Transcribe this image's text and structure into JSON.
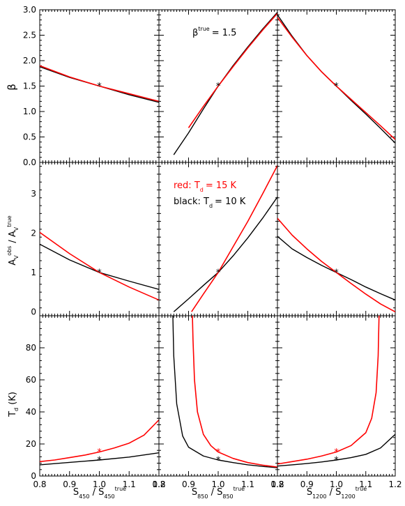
{
  "annotations": {
    "beta_true": {
      "symbol": "β",
      "sup": "true",
      "value": "= 1.5"
    },
    "legend_red": {
      "prefix": "red: T",
      "sub": "d",
      "value": "= 15 K",
      "color": "#ff0000"
    },
    "legend_black": {
      "prefix": "black: T",
      "sub": "d",
      "value": "= 10 K",
      "color": "#000000"
    }
  },
  "colors": {
    "red": "#ff0000",
    "black": "#000000"
  },
  "chart_data": {
    "type": "line",
    "layout": "3x3 grid of panels sharing x-axes by column and y-axes by row",
    "row_labels": [
      {
        "main": "β"
      },
      {
        "main": "A",
        "sub": "V",
        "sup": "obs",
        "denom_main": "A",
        "denom_sub": "V",
        "denom_sup": "true"
      },
      {
        "main": "T",
        "sub": "d",
        "tail": " (K)"
      }
    ],
    "col_labels": [
      {
        "main": "S",
        "sub": "450",
        "denom_main": "S",
        "denom_sub": "450",
        "denom_sup": "true"
      },
      {
        "main": "S",
        "sub": "850",
        "denom_main": "S",
        "denom_sub": "850",
        "denom_sup": "true"
      },
      {
        "main": "S",
        "sub": "1200",
        "denom_main": "S",
        "denom_sub": "1200",
        "denom_sup": "true"
      }
    ],
    "xlim": [
      0.8,
      1.2
    ],
    "x_ticks": [
      "0.8",
      "0.9",
      "1.0",
      "1.1",
      "1.2"
    ],
    "x_tick_values": [
      0.8,
      0.9,
      1.0,
      1.1,
      1.2
    ],
    "rows": [
      {
        "ylim": [
          0,
          3.0
        ],
        "y_ticks": [
          "0.0",
          "0.5",
          "1.0",
          "1.5",
          "2.0",
          "2.5",
          "3.0"
        ],
        "y_tick_values": [
          0,
          0.5,
          1.0,
          1.5,
          2.0,
          2.5,
          3.0
        ]
      },
      {
        "ylim": [
          -0.1,
          3.8
        ],
        "y_ticks": [
          "0",
          "1",
          "2",
          "3"
        ],
        "y_tick_values": [
          0,
          1,
          2,
          3
        ]
      },
      {
        "ylim": [
          0,
          100
        ],
        "y_ticks": [
          "0",
          "20",
          "40",
          "60",
          "80"
        ],
        "y_tick_values": [
          0,
          20,
          40,
          60,
          80
        ]
      }
    ],
    "panels": [
      {
        "row": 0,
        "col": 0,
        "marker": [
          1.0,
          1.5
        ],
        "series": [
          {
            "color": "black",
            "x": [
              0.8,
              0.9,
              1.0,
              1.1,
              1.2
            ],
            "y": [
              1.88,
              1.67,
              1.5,
              1.33,
              1.18
            ]
          },
          {
            "color": "red",
            "x": [
              0.8,
              0.9,
              1.0,
              1.1,
              1.2
            ],
            "y": [
              1.9,
              1.68,
              1.5,
              1.35,
              1.2
            ]
          }
        ]
      },
      {
        "row": 0,
        "col": 1,
        "marker": [
          1.0,
          1.5
        ],
        "series": [
          {
            "color": "black",
            "x": [
              0.85,
              0.9,
              0.95,
              1.0,
              1.05,
              1.1,
              1.15,
              1.2
            ],
            "y": [
              0.15,
              0.58,
              1.05,
              1.5,
              1.9,
              2.27,
              2.62,
              2.95
            ]
          },
          {
            "color": "red",
            "x": [
              0.9,
              0.95,
              1.0,
              1.05,
              1.1,
              1.15,
              1.2
            ],
            "y": [
              0.68,
              1.1,
              1.5,
              1.88,
              2.25,
              2.6,
              2.93
            ]
          }
        ]
      },
      {
        "row": 0,
        "col": 2,
        "marker": [
          1.0,
          1.5
        ],
        "series": [
          {
            "color": "black",
            "x": [
              0.8,
              0.85,
              0.9,
              0.95,
              1.0,
              1.05,
              1.1,
              1.15,
              1.2
            ],
            "y": [
              2.9,
              2.48,
              2.1,
              1.78,
              1.5,
              1.22,
              0.95,
              0.67,
              0.38
            ]
          },
          {
            "color": "red",
            "x": [
              0.8,
              0.85,
              0.9,
              0.95,
              1.0,
              1.05,
              1.1,
              1.15,
              1.2
            ],
            "y": [
              2.85,
              2.46,
              2.1,
              1.78,
              1.5,
              1.24,
              0.98,
              0.72,
              0.45
            ]
          }
        ]
      },
      {
        "row": 1,
        "col": 0,
        "marker": [
          1.0,
          1.0
        ],
        "series": [
          {
            "color": "black",
            "x": [
              0.8,
              0.9,
              1.0,
              1.1,
              1.2
            ],
            "y": [
              1.72,
              1.32,
              1.0,
              0.78,
              0.57
            ]
          },
          {
            "color": "red",
            "x": [
              0.8,
              0.9,
              1.0,
              1.1,
              1.2
            ],
            "y": [
              2.02,
              1.48,
              1.0,
              0.63,
              0.3
            ]
          }
        ]
      },
      {
        "row": 1,
        "col": 1,
        "marker": [
          1.0,
          1.0
        ],
        "series": [
          {
            "color": "black",
            "x": [
              0.85,
              0.9,
              0.95,
              1.0,
              1.05,
              1.1,
              1.15,
              1.2
            ],
            "y": [
              0.0,
              0.33,
              0.67,
              1.0,
              1.42,
              1.88,
              2.38,
              2.92
            ]
          },
          {
            "color": "red",
            "x": [
              0.91,
              0.95,
              1.0,
              1.05,
              1.1,
              1.15,
              1.2
            ],
            "y": [
              0.0,
              0.45,
              1.0,
              1.65,
              2.3,
              3.0,
              3.72
            ]
          }
        ]
      },
      {
        "row": 1,
        "col": 2,
        "marker": [
          1.0,
          1.0
        ],
        "series": [
          {
            "color": "black",
            "x": [
              0.8,
              0.85,
              0.9,
              0.95,
              1.0,
              1.05,
              1.1,
              1.15,
              1.2
            ],
            "y": [
              1.92,
              1.6,
              1.38,
              1.18,
              1.0,
              0.82,
              0.63,
              0.46,
              0.3
            ]
          },
          {
            "color": "red",
            "x": [
              0.8,
              0.85,
              0.9,
              0.95,
              1.0,
              1.05,
              1.1,
              1.15,
              1.2
            ],
            "y": [
              2.38,
              1.95,
              1.6,
              1.28,
              1.0,
              0.72,
              0.45,
              0.2,
              0.0
            ]
          }
        ]
      },
      {
        "row": 2,
        "col": 0,
        "marker": [
          1.0,
          10
        ],
        "marker2": [
          1.0,
          15
        ],
        "series": [
          {
            "color": "black",
            "x": [
              0.8,
              0.9,
              1.0,
              1.1,
              1.2
            ],
            "y": [
              7.0,
              8.5,
              10.0,
              11.8,
              14.5
            ]
          },
          {
            "color": "red",
            "x": [
              0.8,
              0.85,
              0.9,
              0.95,
              1.0,
              1.05,
              1.1,
              1.15,
              1.2
            ],
            "y": [
              9.0,
              10.0,
              11.5,
              13.0,
              15.0,
              17.5,
              20.5,
              25.5,
              35.0
            ]
          }
        ]
      },
      {
        "row": 2,
        "col": 1,
        "marker": [
          1.0,
          10
        ],
        "marker2": [
          1.0,
          15
        ],
        "series": [
          {
            "color": "black",
            "x": [
              0.847,
              0.85,
              0.86,
              0.88,
              0.9,
              0.95,
              1.0,
              1.05,
              1.1,
              1.15,
              1.2
            ],
            "y": [
              100,
              75,
              45,
              25,
              18,
              12.5,
              10.0,
              8.4,
              7.0,
              6.0,
              5.2
            ]
          },
          {
            "color": "red",
            "x": [
              0.913,
              0.915,
              0.92,
              0.93,
              0.95,
              0.975,
              1.0,
              1.05,
              1.1,
              1.15,
              1.2
            ],
            "y": [
              100,
              85,
              60,
              40,
              26,
              19,
              15.0,
              11.0,
              8.4,
              6.8,
              5.6
            ]
          }
        ]
      },
      {
        "row": 2,
        "col": 2,
        "marker": [
          1.0,
          10
        ],
        "marker2": [
          1.0,
          15
        ],
        "series": [
          {
            "color": "black",
            "x": [
              0.8,
              0.85,
              0.9,
              0.95,
              1.0,
              1.05,
              1.1,
              1.15,
              1.2
            ],
            "y": [
              6.2,
              7.0,
              7.8,
              8.8,
              10.0,
              11.5,
              13.5,
              17.5,
              26.0
            ]
          },
          {
            "color": "red",
            "x": [
              0.8,
              0.85,
              0.9,
              0.95,
              1.0,
              1.05,
              1.1,
              1.12,
              1.135,
              1.142,
              1.145
            ],
            "y": [
              7.5,
              9.0,
              10.5,
              12.5,
              15.0,
              19.0,
              27.0,
              36.0,
              52.0,
              75.0,
              100
            ]
          }
        ]
      }
    ]
  }
}
